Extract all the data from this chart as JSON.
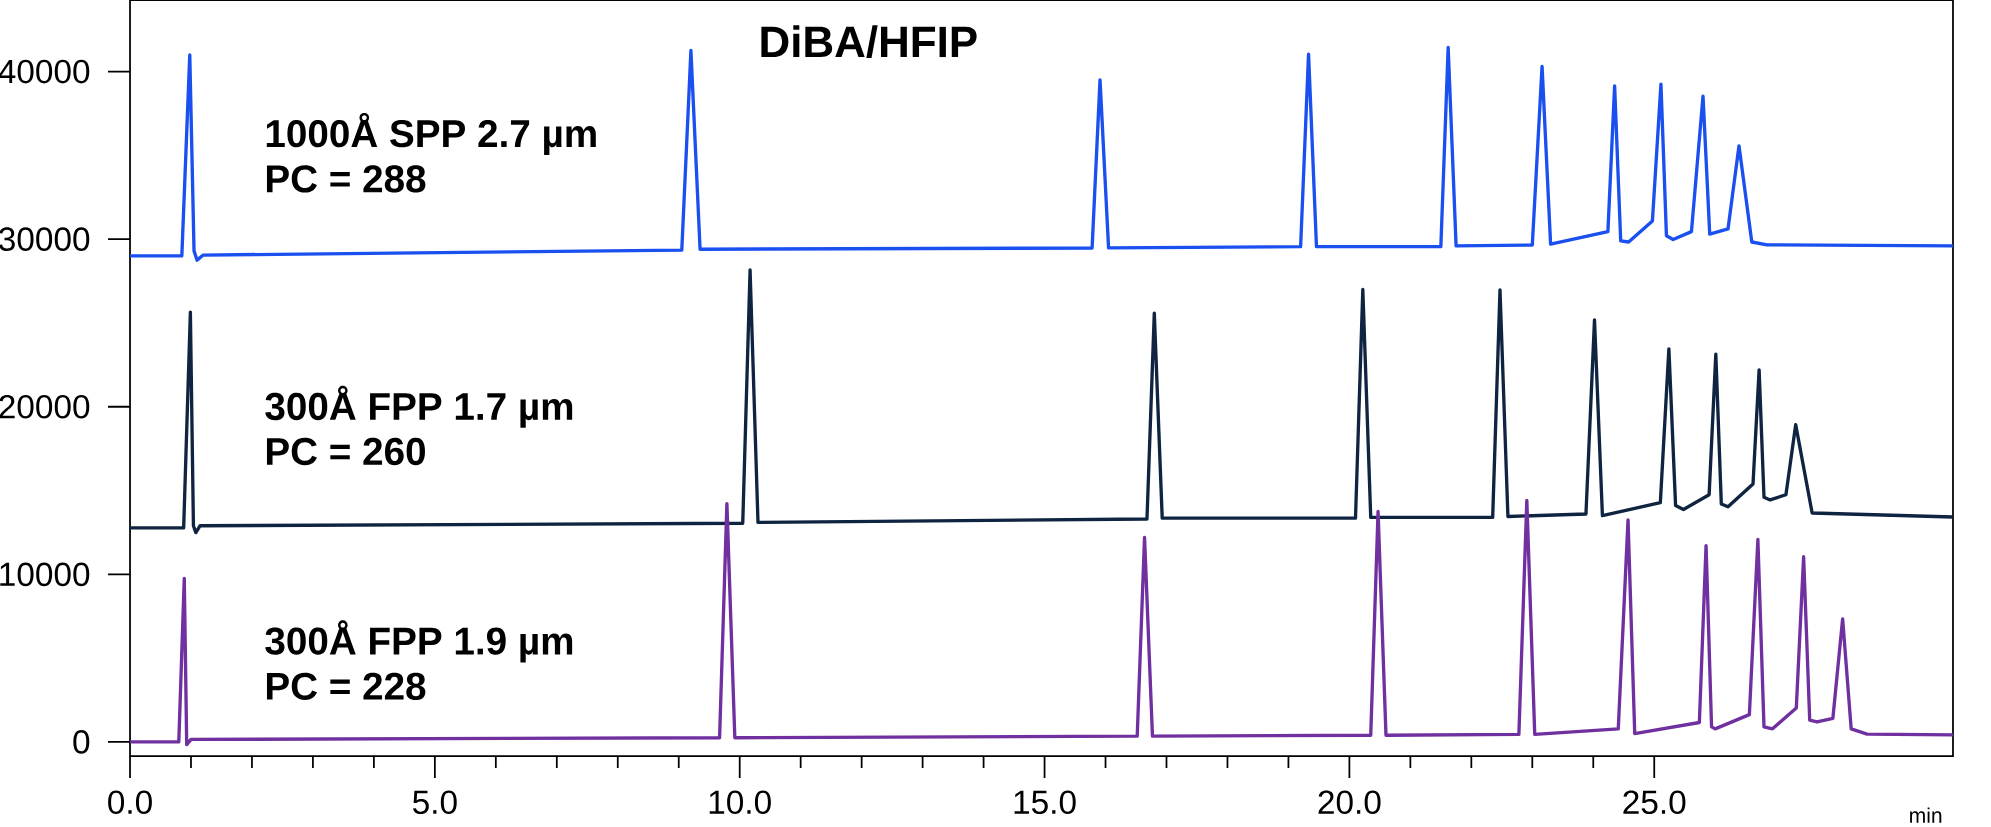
{
  "chart_data": {
    "type": "line",
    "title": "DiBA/HFIP",
    "xlabel": "min",
    "xlim": [
      0,
      29.9
    ],
    "ylim": [
      -840,
      44270
    ],
    "xticks": [
      {
        "value": 0,
        "label": "0.0"
      },
      {
        "value": 5,
        "label": "5.0"
      },
      {
        "value": 10,
        "label": "10.0"
      },
      {
        "value": 15,
        "label": "15.0"
      },
      {
        "value": 20,
        "label": "20.0"
      },
      {
        "value": 25,
        "label": "25.0"
      }
    ],
    "yticks": [
      0,
      10000,
      20000,
      30000,
      40000
    ],
    "grid": false,
    "legend": false,
    "line_style": "solid",
    "annotations": [
      "PC = 288",
      "PC = 260",
      "PC = 228"
    ],
    "series": [
      {
        "name": "1000Å SPP 2.7 µm",
        "color": "#1a4ff0",
        "x": [
          0,
          0.85,
          0.98,
          1.05,
          1.1,
          1.2,
          9.05,
          9.2,
          9.35,
          15.78,
          15.91,
          16.05,
          19.2,
          19.33,
          19.46,
          21.5,
          21.62,
          21.75,
          23.0,
          23.16,
          23.3,
          24.24,
          24.35,
          24.45,
          24.58,
          24.97,
          25.11,
          25.2,
          25.31,
          25.61,
          25.8,
          25.91,
          26.21,
          26.39,
          26.6,
          26.85,
          29.9
        ],
        "values": [
          29000,
          29000,
          41000,
          29300,
          28750,
          29050,
          29350,
          41260,
          29400,
          29470,
          39500,
          29480,
          29550,
          41040,
          29550,
          29550,
          41440,
          29600,
          29650,
          40310,
          29700,
          30450,
          39150,
          29900,
          29830,
          31090,
          39250,
          30200,
          29980,
          30450,
          38530,
          30300,
          30610,
          35570,
          29830,
          29660,
          29600
        ]
      },
      {
        "name": "300Å FPP 1.7 µm",
        "color": "#0f2440",
        "x": [
          0,
          0.88,
          0.99,
          1.04,
          1.08,
          1.15,
          10.05,
          10.17,
          10.3,
          16.68,
          16.8,
          16.93,
          20.1,
          20.22,
          20.35,
          22.35,
          22.47,
          22.6,
          23.88,
          24.02,
          24.15,
          25.1,
          25.24,
          25.35,
          25.48,
          25.9,
          26.01,
          26.1,
          26.21,
          26.62,
          26.72,
          26.8,
          26.9,
          27.16,
          27.32,
          27.59,
          29.9
        ],
        "values": [
          12770,
          12770,
          25650,
          12900,
          12490,
          12900,
          13050,
          28160,
          13100,
          13300,
          25590,
          13350,
          13350,
          27000,
          13400,
          13400,
          26970,
          13450,
          13600,
          25180,
          13500,
          14280,
          23450,
          14100,
          13870,
          14750,
          23140,
          14200,
          14030,
          15390,
          22200,
          14600,
          14440,
          14750,
          18930,
          13660,
          13420
        ]
      },
      {
        "name": "300Å FPP 1.9 µm",
        "color": "#7030a0",
        "x": [
          0,
          0.8,
          0.89,
          0.93,
          1.0,
          9.67,
          9.79,
          9.92,
          16.52,
          16.64,
          16.77,
          20.35,
          20.47,
          20.6,
          22.78,
          22.91,
          23.04,
          24.41,
          24.57,
          24.68,
          25.74,
          25.85,
          25.94,
          26.0,
          26.56,
          26.7,
          26.8,
          26.94,
          27.33,
          27.45,
          27.55,
          27.67,
          27.93,
          28.09,
          28.23,
          28.49,
          29.9
        ],
        "values": [
          0,
          0,
          9760,
          -160,
          150,
          250,
          14220,
          250,
          350,
          12210,
          350,
          400,
          13750,
          400,
          450,
          14410,
          450,
          780,
          13250,
          500,
          1160,
          11710,
          900,
          780,
          1630,
          12080,
          900,
          780,
          2030,
          11050,
          1300,
          1190,
          1410,
          7340,
          780,
          470,
          420
        ]
      }
    ]
  }
}
